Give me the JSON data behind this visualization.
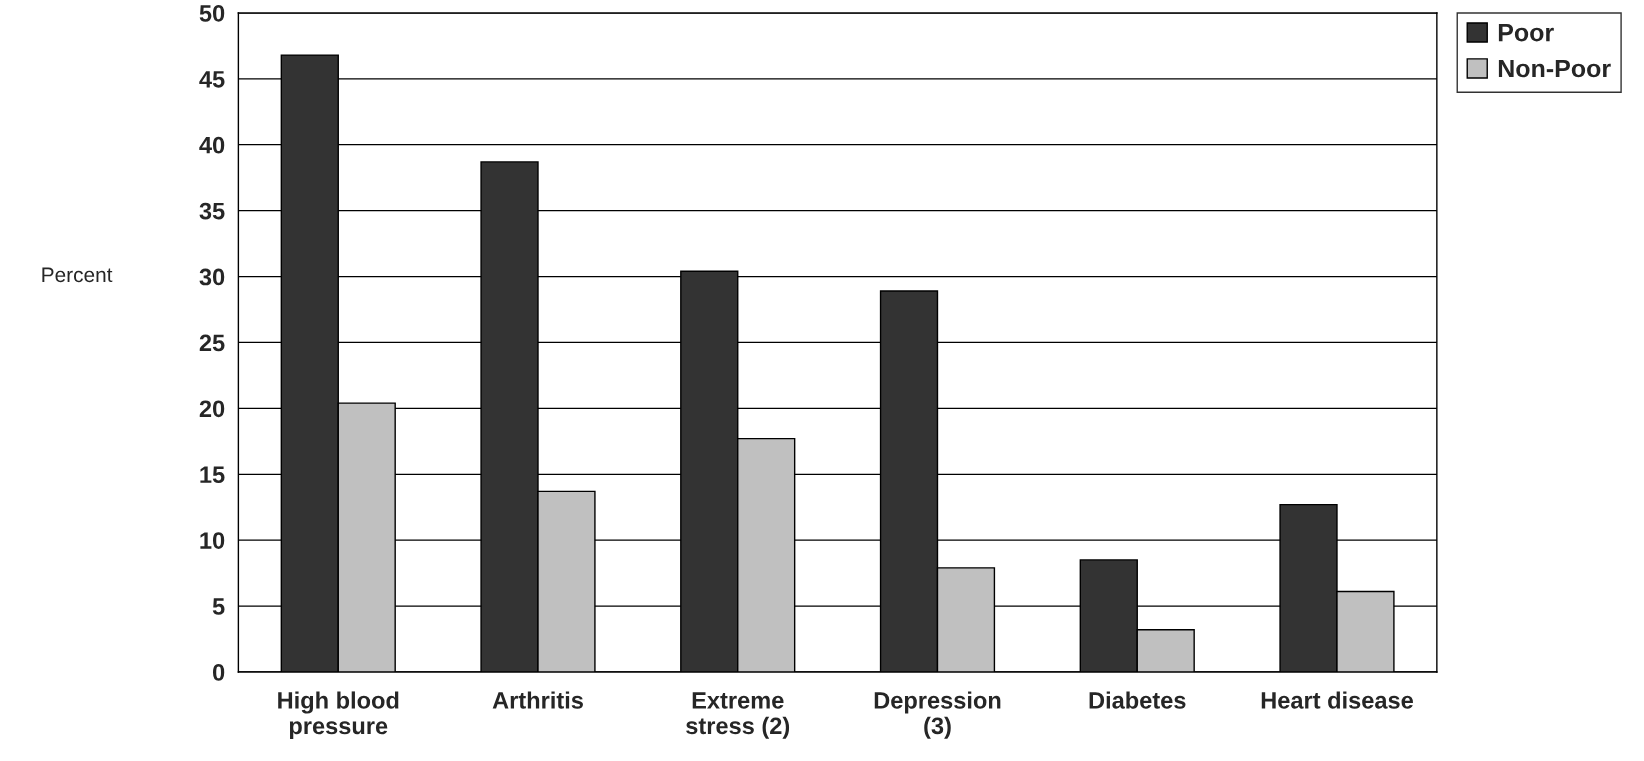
{
  "chart_data": {
    "type": "bar",
    "ylabel": "Percent",
    "categories": [
      "High blood\npressure",
      "Arthritis",
      "Extreme\nstress (2)",
      "Depression\n(3)",
      "Diabetes",
      "Heart disease"
    ],
    "series": [
      {
        "name": "Poor",
        "color": "#333333",
        "values": [
          46.8,
          38.7,
          30.4,
          28.9,
          8.5,
          12.7
        ]
      },
      {
        "name": "Non-Poor",
        "color": "#c0c0c0",
        "values": [
          20.4,
          13.7,
          17.7,
          7.9,
          3.2,
          6.1
        ]
      }
    ],
    "ylim": [
      0,
      50
    ],
    "yticks": [
      0,
      5,
      10,
      15,
      20,
      25,
      30,
      35,
      40,
      45,
      50
    ],
    "grid": "y",
    "legend": "top right"
  }
}
